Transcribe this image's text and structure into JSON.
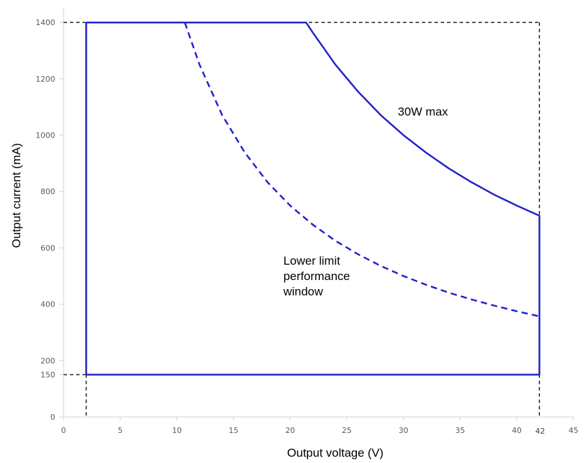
{
  "chart_data": {
    "type": "line",
    "xlabel": "Output voltage (V)",
    "ylabel": "Output current (mA)",
    "xlim": [
      0,
      45
    ],
    "ylim": [
      0,
      1450
    ],
    "x_ticks": [
      0,
      5,
      10,
      15,
      20,
      25,
      30,
      35,
      40,
      45
    ],
    "y_ticks": [
      0,
      200,
      400,
      600,
      800,
      1000,
      1200,
      1400
    ],
    "extra_x_ticks": [
      42
    ],
    "extra_y_ticks": [
      150
    ],
    "grid": false,
    "series": [
      {
        "name": "30W max",
        "style": "solid",
        "color": "#2222cc",
        "x": [
          2,
          21.4,
          22,
          24,
          26,
          28,
          30,
          32,
          34,
          36,
          38,
          40,
          42,
          42,
          2,
          2
        ],
        "y": [
          1400,
          1400,
          1364,
          1250,
          1154,
          1071,
          1000,
          938,
          882,
          833,
          789,
          750,
          714,
          150,
          150,
          1400
        ]
      },
      {
        "name": "Lower limit performance window",
        "style": "dashed",
        "color": "#2222cc",
        "x": [
          10.7,
          12,
          14,
          16,
          18,
          20,
          22,
          24,
          26,
          28,
          30,
          32,
          34,
          36,
          38,
          40,
          42
        ],
        "y": [
          1400,
          1250,
          1071,
          938,
          833,
          750,
          682,
          625,
          577,
          536,
          500,
          469,
          441,
          417,
          395,
          375,
          357
        ]
      }
    ],
    "reference_lines": [
      {
        "orientation": "horizontal",
        "value": 1400,
        "style": "dashed",
        "color": "#222222"
      },
      {
        "orientation": "horizontal",
        "value": 150,
        "style": "dashed",
        "color": "#222222"
      },
      {
        "orientation": "vertical",
        "value": 2,
        "style": "dashed",
        "color": "#222222"
      },
      {
        "orientation": "vertical",
        "value": 42,
        "style": "dashed",
        "color": "#222222"
      }
    ],
    "annotations": [
      {
        "text_lines": [
          "30W max"
        ],
        "x": 29.5,
        "y": 1070
      },
      {
        "text_lines": [
          "Lower limit",
          "performance",
          "window"
        ],
        "x": 19.4,
        "y": 540
      }
    ]
  }
}
